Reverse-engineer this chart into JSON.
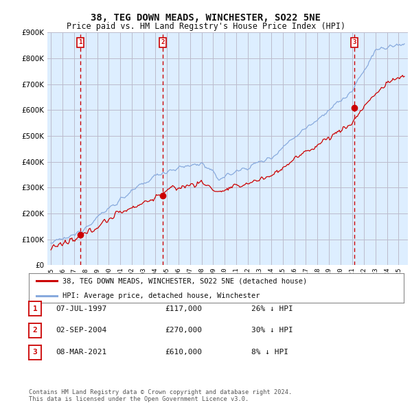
{
  "title": "38, TEG DOWN MEADS, WINCHESTER, SO22 5NE",
  "subtitle": "Price paid vs. HM Land Registry's House Price Index (HPI)",
  "ylim": [
    0,
    900000
  ],
  "yticks": [
    0,
    100000,
    200000,
    300000,
    400000,
    500000,
    600000,
    700000,
    800000,
    900000
  ],
  "purchases": [
    {
      "date_num": 1997.52,
      "price": 117000,
      "label": "1"
    },
    {
      "date_num": 2004.67,
      "price": 270000,
      "label": "2"
    },
    {
      "date_num": 2021.18,
      "price": 610000,
      "label": "3"
    }
  ],
  "purchase_dates_vline": [
    1997.52,
    2004.67,
    2021.18
  ],
  "legend_sale": "38, TEG DOWN MEADS, WINCHESTER, SO22 5NE (detached house)",
  "legend_hpi": "HPI: Average price, detached house, Winchester",
  "table_rows": [
    {
      "num": "1",
      "date": "07-JUL-1997",
      "price": "£117,000",
      "note": "26% ↓ HPI"
    },
    {
      "num": "2",
      "date": "02-SEP-2004",
      "price": "£270,000",
      "note": "30% ↓ HPI"
    },
    {
      "num": "3",
      "date": "08-MAR-2021",
      "price": "£610,000",
      "note": "8% ↓ HPI"
    }
  ],
  "footer": "Contains HM Land Registry data © Crown copyright and database right 2024.\nThis data is licensed under the Open Government Licence v3.0.",
  "sale_line_color": "#cc0000",
  "hpi_line_color": "#88aadd",
  "vline_color": "#cc0000",
  "marker_color": "#cc0000",
  "background_color": "#ffffff",
  "chart_bg_color": "#ddeeff",
  "grid_color": "#bbbbcc"
}
